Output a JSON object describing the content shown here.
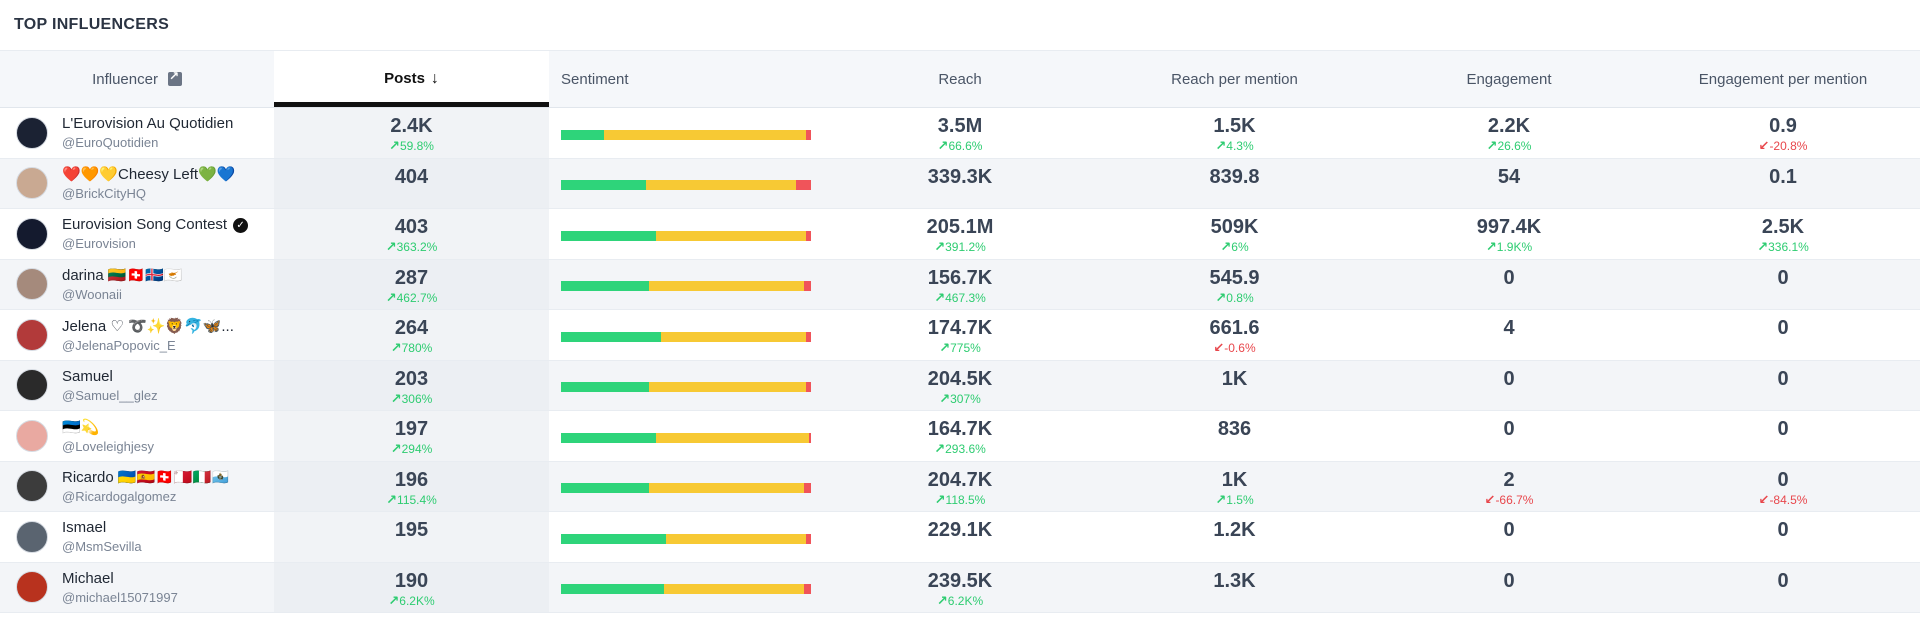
{
  "page": {
    "title": "TOP INFLUENCERS"
  },
  "colors": {
    "positive": "#2ed47a",
    "neutral": "#f7c934",
    "negative": "#f0545a",
    "up": "#2ecc71",
    "down": "#e8474c"
  },
  "columns": {
    "influencer": "Influencer",
    "posts": "Posts",
    "sentiment": "Sentiment",
    "reach": "Reach",
    "reach_per_mention": "Reach per mention",
    "engagement": "Engagement",
    "engagement_per_mention": "Engagement per mention"
  },
  "rows": [
    {
      "name": "L'Eurovision Au Quotidien",
      "handle": "@EuroQuotidien",
      "verified": false,
      "avatar": "#1b2233",
      "posts": "2.4K",
      "posts_chg": "59.8%",
      "posts_dir": "up",
      "sentiment": {
        "pos": 17,
        "neu": 81,
        "neg": 2
      },
      "reach": "3.5M",
      "reach_chg": "66.6%",
      "reach_dir": "up",
      "rpm": "1.5K",
      "rpm_chg": "4.3%",
      "rpm_dir": "up",
      "eng": "2.2K",
      "eng_chg": "26.6%",
      "eng_dir": "up",
      "epm": "0.9",
      "epm_chg": "-20.8%",
      "epm_dir": "down"
    },
    {
      "name": "❤️🧡💛Cheesy Left💚💙",
      "handle": "@BrickCityHQ",
      "verified": false,
      "avatar": "#c9a992",
      "posts": "404",
      "posts_chg": "",
      "posts_dir": "",
      "sentiment": {
        "pos": 34,
        "neu": 60,
        "neg": 6
      },
      "reach": "339.3K",
      "reach_chg": "",
      "reach_dir": "",
      "rpm": "839.8",
      "rpm_chg": "",
      "rpm_dir": "",
      "eng": "54",
      "eng_chg": "",
      "eng_dir": "",
      "epm": "0.1",
      "epm_chg": "",
      "epm_dir": ""
    },
    {
      "name": "Eurovision Song Contest",
      "handle": "@Eurovision",
      "verified": true,
      "avatar": "#141a2e",
      "posts": "403",
      "posts_chg": "363.2%",
      "posts_dir": "up",
      "sentiment": {
        "pos": 38,
        "neu": 60,
        "neg": 2
      },
      "reach": "205.1M",
      "reach_chg": "391.2%",
      "reach_dir": "up",
      "rpm": "509K",
      "rpm_chg": "6%",
      "rpm_dir": "up",
      "eng": "997.4K",
      "eng_chg": "1.9K%",
      "eng_dir": "up",
      "epm": "2.5K",
      "epm_chg": "336.1%",
      "epm_dir": "up"
    },
    {
      "name": "darina 🇱🇹🇨🇭🇮🇸🇨🇾",
      "handle": "@Woonaii",
      "verified": false,
      "avatar": "#a58a7c",
      "posts": "287",
      "posts_chg": "462.7%",
      "posts_dir": "up",
      "sentiment": {
        "pos": 35,
        "neu": 62,
        "neg": 3
      },
      "reach": "156.7K",
      "reach_chg": "467.3%",
      "reach_dir": "up",
      "rpm": "545.9",
      "rpm_chg": "0.8%",
      "rpm_dir": "up",
      "eng": "0",
      "eng_chg": "",
      "eng_dir": "",
      "epm": "0",
      "epm_chg": "",
      "epm_dir": ""
    },
    {
      "name": "Jelena ♡ ➰✨🦁🐬🦋...",
      "handle": "@JelenaPopovic_E",
      "verified": false,
      "avatar": "#b23a3a",
      "posts": "264",
      "posts_chg": "780%",
      "posts_dir": "up",
      "sentiment": {
        "pos": 40,
        "neu": 58,
        "neg": 2
      },
      "reach": "174.7K",
      "reach_chg": "775%",
      "reach_dir": "up",
      "rpm": "661.6",
      "rpm_chg": "-0.6%",
      "rpm_dir": "down",
      "eng": "4",
      "eng_chg": "",
      "eng_dir": "",
      "epm": "0",
      "epm_chg": "",
      "epm_dir": ""
    },
    {
      "name": "Samuel",
      "handle": "@Samuel__glez",
      "verified": false,
      "avatar": "#2a2a2a",
      "posts": "203",
      "posts_chg": "306%",
      "posts_dir": "up",
      "sentiment": {
        "pos": 35,
        "neu": 63,
        "neg": 2
      },
      "reach": "204.5K",
      "reach_chg": "307%",
      "reach_dir": "up",
      "rpm": "1K",
      "rpm_chg": "",
      "rpm_dir": "",
      "eng": "0",
      "eng_chg": "",
      "eng_dir": "",
      "epm": "0",
      "epm_chg": "",
      "epm_dir": ""
    },
    {
      "name": "🇪🇪💫",
      "handle": "@Loveleighjesy",
      "verified": false,
      "avatar": "#e9a9a1",
      "posts": "197",
      "posts_chg": "294%",
      "posts_dir": "up",
      "sentiment": {
        "pos": 38,
        "neu": 61,
        "neg": 1
      },
      "reach": "164.7K",
      "reach_chg": "293.6%",
      "reach_dir": "up",
      "rpm": "836",
      "rpm_chg": "",
      "rpm_dir": "",
      "eng": "0",
      "eng_chg": "",
      "eng_dir": "",
      "epm": "0",
      "epm_chg": "",
      "epm_dir": ""
    },
    {
      "name": "Ricardo 🇺🇦🇪🇸🇨🇭🇲🇹🇮🇹🇸🇲",
      "handle": "@Ricardogalgomez",
      "verified": false,
      "avatar": "#3c3c3c",
      "posts": "196",
      "posts_chg": "115.4%",
      "posts_dir": "up",
      "sentiment": {
        "pos": 35,
        "neu": 62,
        "neg": 3
      },
      "reach": "204.7K",
      "reach_chg": "118.5%",
      "reach_dir": "up",
      "rpm": "1K",
      "rpm_chg": "1.5%",
      "rpm_dir": "up",
      "eng": "2",
      "eng_chg": "-66.7%",
      "eng_dir": "down",
      "epm": "0",
      "epm_chg": "-84.5%",
      "epm_dir": "down"
    },
    {
      "name": "Ismael",
      "handle": "@MsmSevilla",
      "verified": false,
      "avatar": "#5a6470",
      "posts": "195",
      "posts_chg": "",
      "posts_dir": "",
      "sentiment": {
        "pos": 42,
        "neu": 56,
        "neg": 2
      },
      "reach": "229.1K",
      "reach_chg": "",
      "reach_dir": "",
      "rpm": "1.2K",
      "rpm_chg": "",
      "rpm_dir": "",
      "eng": "0",
      "eng_chg": "",
      "eng_dir": "",
      "epm": "0",
      "epm_chg": "",
      "epm_dir": ""
    },
    {
      "name": "Michael",
      "handle": "@michael15071997",
      "verified": false,
      "avatar": "#b8321e",
      "posts": "190",
      "posts_chg": "6.2K%",
      "posts_dir": "up",
      "sentiment": {
        "pos": 41,
        "neu": 56,
        "neg": 3
      },
      "reach": "239.5K",
      "reach_chg": "6.2K%",
      "reach_dir": "up",
      "rpm": "1.3K",
      "rpm_chg": "",
      "rpm_dir": "",
      "eng": "0",
      "eng_chg": "",
      "eng_dir": "",
      "epm": "0",
      "epm_chg": "",
      "epm_dir": ""
    }
  ]
}
